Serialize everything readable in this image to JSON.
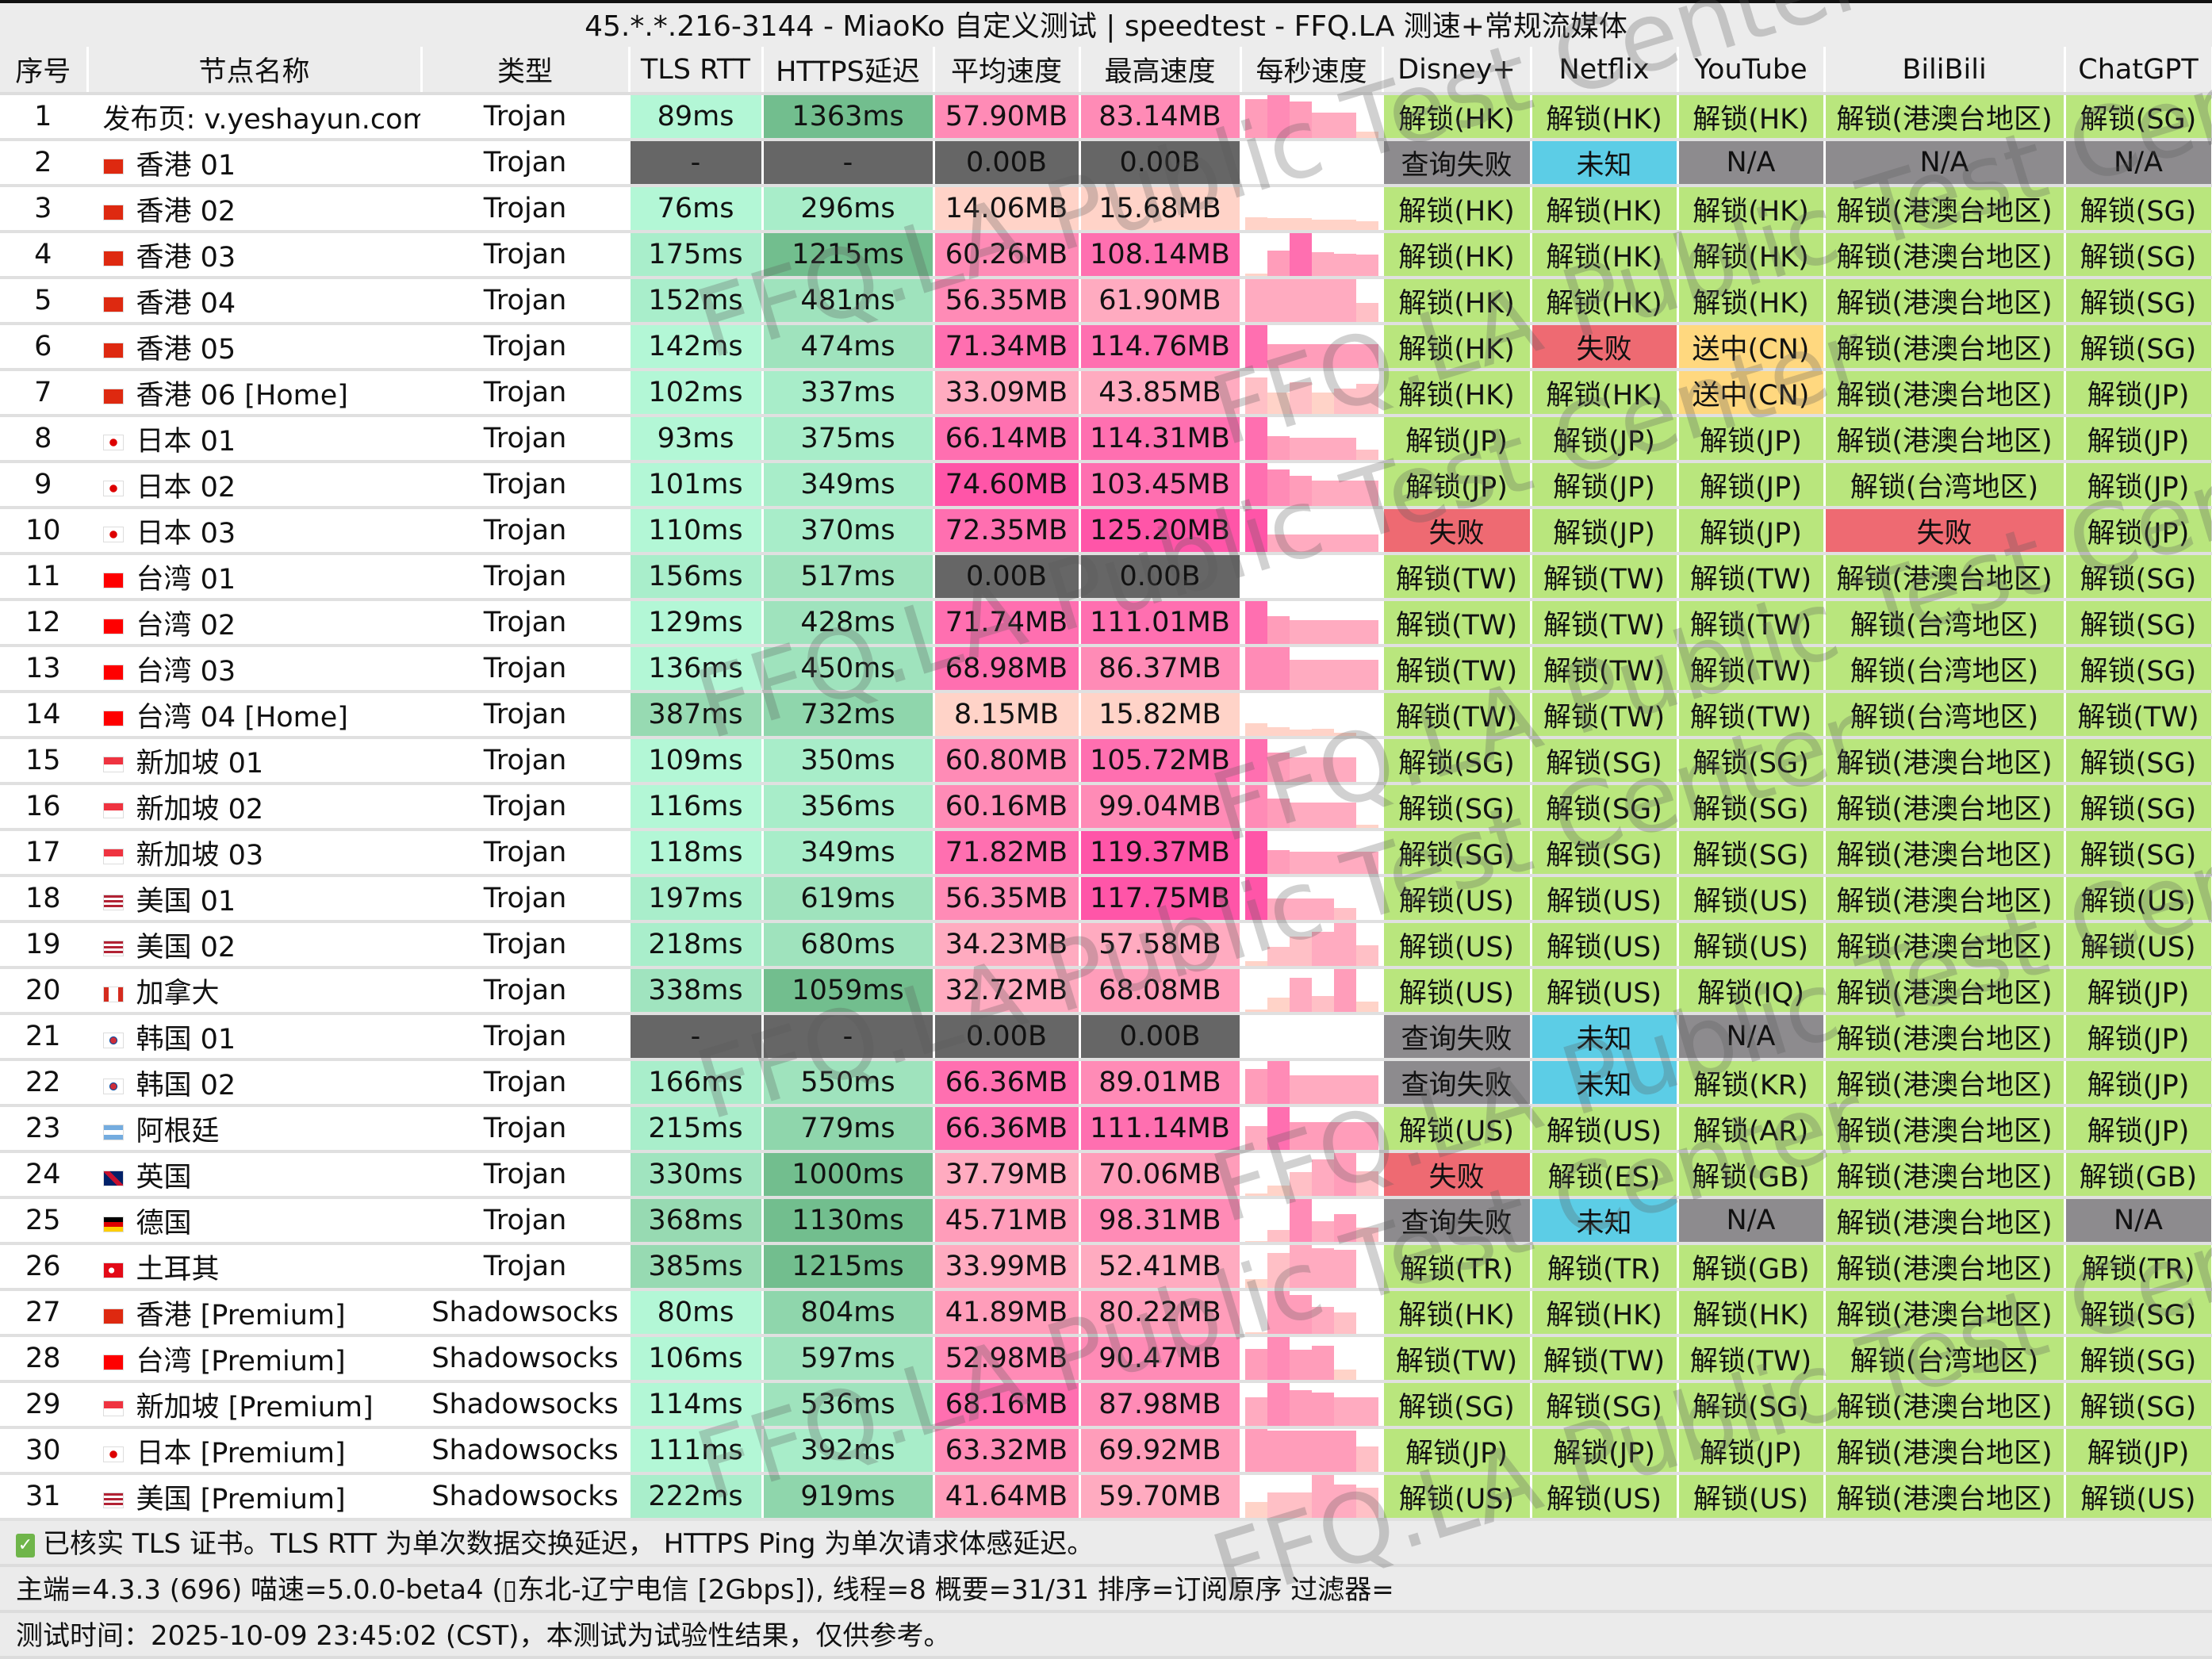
{
  "window": {
    "title": "45.*.*.216-3144 - MiaoKo 自定义测试 | speedtest - FFQ.LA 测速+常规流媒体"
  },
  "columns": [
    "序号",
    "节点名称",
    "类型",
    "TLS RTT",
    "HTTPS延迟",
    "平均速度",
    "最高速度",
    "每秒速度",
    "Disney+",
    "Netflix",
    "YouTube",
    "BiliBili",
    "ChatGPT"
  ],
  "colors": {
    "unlock": "#b9e67d",
    "fail": "#ee6a72",
    "query_fail": "#8d8b8e",
    "unknown": "#5ccde6",
    "na": "#8d8b8e",
    "sent_cn": "#ffd87f",
    "null_cell": "#666666"
  },
  "rows": [
    {
      "id": "1",
      "flag": "",
      "name": "发布页: v.yeshayun.com",
      "type": "Trojan",
      "tls": "89ms",
      "https": "1363ms",
      "avg": "57.90MB",
      "max": "83.14MB",
      "spark": [
        0.9,
        1,
        0.85,
        0.6,
        0.6,
        0.15
      ],
      "media": [
        "解锁(HK)",
        "解锁(HK)",
        "解锁(HK)",
        "解锁(港澳台地区)",
        "解锁(SG)"
      ]
    },
    {
      "id": "2",
      "flag": "hk",
      "name": "香港 01",
      "type": "Trojan",
      "tls": "-",
      "https": "-",
      "avg": "0.00B",
      "max": "0.00B",
      "spark": [],
      "media": [
        "查询失败",
        "未知",
        "N/A",
        "N/A",
        "N/A"
      ]
    },
    {
      "id": "3",
      "flag": "hk",
      "name": "香港 02",
      "type": "Trojan",
      "tls": "76ms",
      "https": "296ms",
      "avg": "14.06MB",
      "max": "15.68MB",
      "spark": [
        0.3,
        0.27,
        0.27,
        0.25,
        0.25,
        0.2
      ],
      "media": [
        "解锁(HK)",
        "解锁(HK)",
        "解锁(HK)",
        "解锁(港澳台地区)",
        "解锁(SG)"
      ]
    },
    {
      "id": "4",
      "flag": "hk",
      "name": "香港 03",
      "type": "Trojan",
      "tls": "175ms",
      "https": "1215ms",
      "avg": "60.26MB",
      "max": "108.14MB",
      "spark": [
        0.05,
        0.6,
        1,
        0.55,
        0.52,
        0.5
      ],
      "media": [
        "解锁(HK)",
        "解锁(HK)",
        "解锁(HK)",
        "解锁(港澳台地区)",
        "解锁(SG)"
      ]
    },
    {
      "id": "5",
      "flag": "hk",
      "name": "香港 04",
      "type": "Trojan",
      "tls": "152ms",
      "https": "481ms",
      "avg": "56.35MB",
      "max": "61.90MB",
      "spark": [
        1,
        1,
        1,
        1,
        1,
        0.45
      ],
      "media": [
        "解锁(HK)",
        "解锁(HK)",
        "解锁(HK)",
        "解锁(港澳台地区)",
        "解锁(SG)"
      ]
    },
    {
      "id": "6",
      "flag": "hk",
      "name": "香港 05",
      "type": "Trojan",
      "tls": "142ms",
      "https": "474ms",
      "avg": "71.34MB",
      "max": "114.76MB",
      "spark": [
        1,
        0.55,
        0.55,
        0.55,
        0.55,
        0.55
      ],
      "media": [
        "解锁(HK)",
        "失败",
        "送中(CN)",
        "解锁(港澳台地区)",
        "解锁(SG)"
      ]
    },
    {
      "id": "7",
      "flag": "hk",
      "name": "香港 06 [Home]",
      "type": "Trojan",
      "tls": "102ms",
      "https": "337ms",
      "avg": "33.09MB",
      "max": "43.85MB",
      "spark": [
        0.85,
        0.5,
        0.75,
        0.5,
        0.6,
        0.7
      ],
      "media": [
        "解锁(HK)",
        "解锁(HK)",
        "送中(CN)",
        "解锁(港澳台地区)",
        "解锁(JP)"
      ]
    },
    {
      "id": "8",
      "flag": "jp",
      "name": "日本 01",
      "type": "Trojan",
      "tls": "93ms",
      "https": "375ms",
      "avg": "66.14MB",
      "max": "114.31MB",
      "spark": [
        1,
        0.55,
        0.52,
        0.52,
        0.52,
        0.25
      ],
      "media": [
        "解锁(JP)",
        "解锁(JP)",
        "解锁(JP)",
        "解锁(港澳台地区)",
        "解锁(JP)"
      ]
    },
    {
      "id": "9",
      "flag": "jp",
      "name": "日本 02",
      "type": "Trojan",
      "tls": "101ms",
      "https": "349ms",
      "avg": "74.60MB",
      "max": "103.45MB",
      "spark": [
        1,
        0.85,
        0.7,
        0.6,
        0.6,
        0.6
      ],
      "media": [
        "解锁(JP)",
        "解锁(JP)",
        "解锁(JP)",
        "解锁(台湾地区)",
        "解锁(JP)"
      ]
    },
    {
      "id": "10",
      "flag": "jp",
      "name": "日本 03",
      "type": "Trojan",
      "tls": "110ms",
      "https": "370ms",
      "avg": "72.35MB",
      "max": "125.20MB",
      "spark": [
        1,
        0.4,
        0.4,
        0.4,
        0.4,
        0.4
      ],
      "media": [
        "失败",
        "解锁(JP)",
        "解锁(JP)",
        "失败",
        "解锁(JP)"
      ]
    },
    {
      "id": "11",
      "flag": "tw",
      "name": "台湾 01",
      "type": "Trojan",
      "tls": "156ms",
      "https": "517ms",
      "avg": "0.00B",
      "max": "0.00B",
      "spark": [],
      "media": [
        "解锁(TW)",
        "解锁(TW)",
        "解锁(TW)",
        "解锁(港澳台地区)",
        "解锁(SG)"
      ]
    },
    {
      "id": "12",
      "flag": "tw",
      "name": "台湾 02",
      "type": "Trojan",
      "tls": "129ms",
      "https": "428ms",
      "avg": "71.74MB",
      "max": "111.01MB",
      "spark": [
        1,
        0.65,
        0.55,
        0.55,
        0.55,
        0.55
      ],
      "media": [
        "解锁(TW)",
        "解锁(TW)",
        "解锁(TW)",
        "解锁(台湾地区)",
        "解锁(SG)"
      ]
    },
    {
      "id": "13",
      "flag": "tw",
      "name": "台湾 03",
      "type": "Trojan",
      "tls": "136ms",
      "https": "450ms",
      "avg": "68.98MB",
      "max": "86.37MB",
      "spark": [
        1,
        1,
        0.7,
        0.7,
        0.7,
        0.7
      ],
      "media": [
        "解锁(TW)",
        "解锁(TW)",
        "解锁(TW)",
        "解锁(台湾地区)",
        "解锁(SG)"
      ]
    },
    {
      "id": "14",
      "flag": "tw",
      "name": "台湾 04 [Home]",
      "type": "Trojan",
      "tls": "387ms",
      "https": "732ms",
      "avg": "8.15MB",
      "max": "15.82MB",
      "spark": [
        0.3,
        0.2,
        0.15,
        0.17,
        0.08,
        0
      ],
      "media": [
        "解锁(TW)",
        "解锁(TW)",
        "解锁(TW)",
        "解锁(台湾地区)",
        "解锁(TW)"
      ]
    },
    {
      "id": "15",
      "flag": "sg",
      "name": "新加坡 01",
      "type": "Trojan",
      "tls": "109ms",
      "https": "350ms",
      "avg": "60.80MB",
      "max": "105.72MB",
      "spark": [
        1,
        0.68,
        0.58,
        0.58,
        0.58,
        0
      ],
      "media": [
        "解锁(SG)",
        "解锁(SG)",
        "解锁(SG)",
        "解锁(港澳台地区)",
        "解锁(SG)"
      ]
    },
    {
      "id": "16",
      "flag": "sg",
      "name": "新加坡 02",
      "type": "Trojan",
      "tls": "116ms",
      "https": "356ms",
      "avg": "60.16MB",
      "max": "99.04MB",
      "spark": [
        1,
        0.68,
        0.6,
        0.6,
        0.6,
        0.08
      ],
      "media": [
        "解锁(SG)",
        "解锁(SG)",
        "解锁(SG)",
        "解锁(港澳台地区)",
        "解锁(SG)"
      ]
    },
    {
      "id": "17",
      "flag": "sg",
      "name": "新加坡 03",
      "type": "Trojan",
      "tls": "118ms",
      "https": "349ms",
      "avg": "71.82MB",
      "max": "119.37MB",
      "spark": [
        1,
        0.55,
        0.52,
        0.52,
        0.52,
        0.52
      ],
      "media": [
        "解锁(SG)",
        "解锁(SG)",
        "解锁(SG)",
        "解锁(港澳台地区)",
        "解锁(SG)"
      ]
    },
    {
      "id": "18",
      "flag": "us",
      "name": "美国 01",
      "type": "Trojan",
      "tls": "197ms",
      "https": "619ms",
      "avg": "56.35MB",
      "max": "117.75MB",
      "spark": [
        1,
        0.5,
        0.5,
        0.5,
        0.28,
        0
      ],
      "media": [
        "解锁(US)",
        "解锁(US)",
        "解锁(US)",
        "解锁(港澳台地区)",
        "解锁(US)"
      ]
    },
    {
      "id": "19",
      "flag": "us",
      "name": "美国 02",
      "type": "Trojan",
      "tls": "218ms",
      "https": "680ms",
      "avg": "34.23MB",
      "max": "57.58MB",
      "spark": [
        0.12,
        0.45,
        0.68,
        0.8,
        1,
        0.48
      ],
      "media": [
        "解锁(US)",
        "解锁(US)",
        "解锁(US)",
        "解锁(港澳台地区)",
        "解锁(US)"
      ]
    },
    {
      "id": "20",
      "flag": "ca",
      "name": "加拿大",
      "type": "Trojan",
      "tls": "338ms",
      "https": "1059ms",
      "avg": "32.72MB",
      "max": "68.08MB",
      "spark": [
        0.05,
        0.33,
        0.8,
        0.37,
        1,
        0.25
      ],
      "media": [
        "解锁(US)",
        "解锁(US)",
        "解锁(IQ)",
        "解锁(港澳台地区)",
        "解锁(JP)"
      ]
    },
    {
      "id": "21",
      "flag": "kr",
      "name": "韩国 01",
      "type": "Trojan",
      "tls": "-",
      "https": "-",
      "avg": "0.00B",
      "max": "0.00B",
      "spark": [],
      "media": [
        "查询失败",
        "未知",
        "N/A",
        "解锁(港澳台地区)",
        "解锁(JP)"
      ]
    },
    {
      "id": "22",
      "flag": "kr",
      "name": "韩国 02",
      "type": "Trojan",
      "tls": "166ms",
      "https": "550ms",
      "avg": "66.36MB",
      "max": "89.01MB",
      "spark": [
        0.82,
        1,
        0.67,
        0.67,
        0.67,
        0.67
      ],
      "media": [
        "查询失败",
        "未知",
        "解锁(KR)",
        "解锁(港澳台地区)",
        "解锁(JP)"
      ]
    },
    {
      "id": "23",
      "flag": "ar",
      "name": "阿根廷",
      "type": "Trojan",
      "tls": "215ms",
      "https": "779ms",
      "avg": "66.36MB",
      "max": "111.14MB",
      "spark": [
        0.55,
        1,
        0.65,
        0.65,
        0.65,
        0.65
      ],
      "media": [
        "解锁(US)",
        "解锁(US)",
        "解锁(AR)",
        "解锁(港澳台地区)",
        "解锁(JP)"
      ]
    },
    {
      "id": "24",
      "flag": "gb",
      "name": "英国",
      "type": "Trojan",
      "tls": "330ms",
      "https": "1000ms",
      "avg": "37.79MB",
      "max": "70.06MB",
      "spark": [
        0.05,
        0.25,
        0.55,
        0.85,
        1,
        0.58
      ],
      "media": [
        "失败",
        "解锁(ES)",
        "解锁(GB)",
        "解锁(港澳台地区)",
        "解锁(GB)"
      ]
    },
    {
      "id": "25",
      "flag": "de",
      "name": "德国",
      "type": "Trojan",
      "tls": "368ms",
      "https": "1130ms",
      "avg": "45.71MB",
      "max": "98.31MB",
      "spark": [
        0.02,
        0.27,
        1,
        0.48,
        0.65,
        0.34
      ],
      "media": [
        "查询失败",
        "未知",
        "N/A",
        "解锁(港澳台地区)",
        "N/A"
      ]
    },
    {
      "id": "26",
      "flag": "tr",
      "name": "土耳其",
      "type": "Trojan",
      "tls": "385ms",
      "https": "1215ms",
      "avg": "33.99MB",
      "max": "52.41MB",
      "spark": [
        0.2,
        0.82,
        1,
        0.93,
        0.88,
        0
      ],
      "media": [
        "解锁(TR)",
        "解锁(TR)",
        "解锁(GB)",
        "解锁(港澳台地区)",
        "解锁(TR)"
      ]
    },
    {
      "id": "27",
      "flag": "hk",
      "name": "香港 [Premium]",
      "type": "Shadowsocks",
      "tls": "80ms",
      "https": "804ms",
      "avg": "41.89MB",
      "max": "80.22MB",
      "spark": [
        0.04,
        1,
        0.9,
        0.63,
        0.5,
        0
      ],
      "media": [
        "解锁(HK)",
        "解锁(HK)",
        "解锁(HK)",
        "解锁(港澳台地区)",
        "解锁(SG)"
      ]
    },
    {
      "id": "28",
      "flag": "tw",
      "name": "台湾 [Premium]",
      "type": "Shadowsocks",
      "tls": "106ms",
      "https": "597ms",
      "avg": "52.98MB",
      "max": "90.47MB",
      "spark": [
        0.73,
        1,
        0.7,
        0.8,
        0.25,
        0
      ],
      "media": [
        "解锁(TW)",
        "解锁(TW)",
        "解锁(TW)",
        "解锁(台湾地区)",
        "解锁(SG)"
      ]
    },
    {
      "id": "29",
      "flag": "sg",
      "name": "新加坡 [Premium]",
      "type": "Shadowsocks",
      "tls": "114ms",
      "https": "536ms",
      "avg": "68.16MB",
      "max": "87.98MB",
      "spark": [
        0.67,
        1,
        0.84,
        0.77,
        0.67,
        0.67
      ],
      "media": [
        "解锁(SG)",
        "解锁(SG)",
        "解锁(SG)",
        "解锁(港澳台地区)",
        "解锁(SG)"
      ]
    },
    {
      "id": "30",
      "flag": "jp",
      "name": "日本 [Premium]",
      "type": "Shadowsocks",
      "tls": "111ms",
      "https": "392ms",
      "avg": "63.32MB",
      "max": "69.92MB",
      "spark": [
        1,
        0.97,
        0.97,
        0.97,
        0.97,
        0.6
      ],
      "media": [
        "解锁(JP)",
        "解锁(JP)",
        "解锁(JP)",
        "解锁(港澳台地区)",
        "解锁(JP)"
      ]
    },
    {
      "id": "31",
      "flag": "us",
      "name": "美国 [Premium]",
      "type": "Shadowsocks",
      "tls": "222ms",
      "https": "919ms",
      "avg": "41.64MB",
      "max": "59.70MB",
      "spark": [
        0.37,
        0.6,
        0.6,
        1,
        0.77,
        0.7
      ],
      "media": [
        "解锁(US)",
        "解锁(US)",
        "解锁(US)",
        "解锁(港澳台地区)",
        "解锁(US)"
      ]
    }
  ],
  "footer": {
    "line1": "已核实 TLS 证书。TLS RTT 为单次数据交换延迟， HTTPS Ping 为单次请求体感延迟。",
    "line2": "主端=4.3.3 (696) 喵速=5.0.0-beta4 (▯东北-辽宁电信 [2Gbps]), 线程=8 概要=31/31 排序=订阅原序 过滤器=",
    "line3": "测试时间：2025-10-09 23:45:02 (CST)，本测试为试验性结果，仅供参考。"
  },
  "watermark": "FFQ.LA Public Test Center"
}
